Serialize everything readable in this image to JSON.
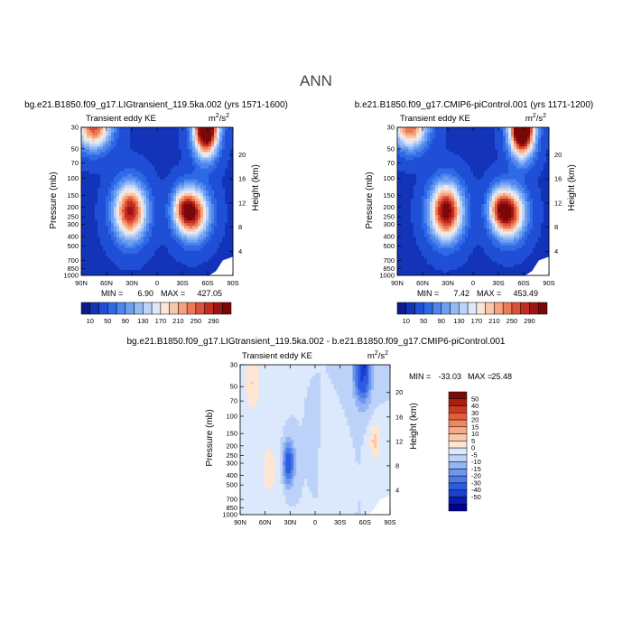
{
  "page": {
    "title": "ANN"
  },
  "chart_data": [
    {
      "type": "contour",
      "title": "bg.e21.B1850.f09_g17.LIGtransient_119.5ka.002 (yrs 1571-1600)",
      "left_label": "Transient eddy KE",
      "units": "m²/s²",
      "units_base": "m",
      "units_exp1": "2",
      "units_mid": "/s",
      "units_exp2": "2",
      "ylabel": "Pressure (mb)",
      "ylabel_right": "Height (km)",
      "x_ticks": [
        "90N",
        "60N",
        "30N",
        "0",
        "30S",
        "60S",
        "90S"
      ],
      "y_ticks": [
        "30",
        "50",
        "70",
        "100",
        "150",
        "200",
        "250",
        "300",
        "400",
        "500",
        "700",
        "850",
        "1000"
      ],
      "y_ticks_right": [
        "20",
        "16",
        "12",
        "8",
        "4"
      ],
      "min_label": "MIN =",
      "min_value": "6.90",
      "max_label": "MAX =",
      "max_value": "427.05",
      "min": 6.9,
      "max": 427.05,
      "colorbar_labels": [
        "10",
        "50",
        "90",
        "130",
        "170",
        "210",
        "250",
        "290"
      ],
      "features": [
        {
          "lat": 75,
          "p": 30,
          "value": 260,
          "spread_lat": 14,
          "spread_lp": 0.35
        },
        {
          "lat": -58,
          "p": 30,
          "value": 420,
          "spread_lat": 10,
          "spread_lp": 0.45
        },
        {
          "lat": 32,
          "p": 220,
          "value": 300,
          "spread_lat": 13,
          "spread_lp": 0.45
        },
        {
          "lat": -42,
          "p": 230,
          "value": 300,
          "spread_lat": 13,
          "spread_lp": 0.4
        },
        {
          "lat": -30,
          "p": 200,
          "value": 130,
          "spread_lat": 8,
          "spread_lp": 0.3
        }
      ]
    },
    {
      "type": "contour",
      "title": "b.e21.B1850.f09_g17.CMIP6-piControl.001 (yrs 1171-1200)",
      "left_label": "Transient eddy KE",
      "units": "m²/s²",
      "units_base": "m",
      "units_exp1": "2",
      "units_mid": "/s",
      "units_exp2": "2",
      "ylabel": "Pressure (mb)",
      "ylabel_right": "Height (km)",
      "x_ticks": [
        "90N",
        "60N",
        "30N",
        "0",
        "30S",
        "60S",
        "90S"
      ],
      "y_ticks": [
        "30",
        "50",
        "70",
        "100",
        "150",
        "200",
        "250",
        "300",
        "400",
        "500",
        "700",
        "850",
        "1000"
      ],
      "y_ticks_right": [
        "20",
        "16",
        "12",
        "8",
        "4"
      ],
      "min_label": "MIN =",
      "min_value": "7.42",
      "max_label": "MAX =",
      "max_value": "453.49",
      "min": 7.42,
      "max": 453.49,
      "colorbar_labels": [
        "10",
        "50",
        "90",
        "130",
        "170",
        "210",
        "250",
        "290"
      ],
      "features": [
        {
          "lat": 75,
          "p": 30,
          "value": 250,
          "spread_lat": 14,
          "spread_lp": 0.35
        },
        {
          "lat": -58,
          "p": 30,
          "value": 450,
          "spread_lat": 10,
          "spread_lp": 0.45
        },
        {
          "lat": 32,
          "p": 220,
          "value": 330,
          "spread_lat": 13,
          "spread_lp": 0.45
        },
        {
          "lat": -42,
          "p": 230,
          "value": 310,
          "spread_lat": 13,
          "spread_lp": 0.4
        },
        {
          "lat": -30,
          "p": 200,
          "value": 130,
          "spread_lat": 8,
          "spread_lp": 0.3
        }
      ]
    },
    {
      "type": "contour",
      "title": "bg.e21.B1850.f09_g17.LIGtransient_119.5ka.002 - b.e21.B1850.f09_g17.CMIP6-piControl.001",
      "left_label": "Transient eddy KE",
      "units": "m²/s²",
      "units_base": "m",
      "units_exp1": "2",
      "units_mid": "/s",
      "units_exp2": "2",
      "ylabel": "Pressure (mb)",
      "ylabel_right": "Height (km)",
      "x_ticks": [
        "90N",
        "60N",
        "30N",
        "0",
        "30S",
        "60S",
        "90S"
      ],
      "y_ticks": [
        "30",
        "50",
        "70",
        "100",
        "150",
        "200",
        "250",
        "300",
        "400",
        "500",
        "700",
        "850",
        "1000"
      ],
      "y_ticks_right": [
        "20",
        "16",
        "12",
        "8",
        "4"
      ],
      "min_label": "MIN =",
      "min_value": "-33.03",
      "max_label": "MAX =",
      "max_value": "25.48",
      "min": -33.03,
      "max": 25.48,
      "colorbar_labels": [
        "50",
        "40",
        "30",
        "20",
        "15",
        "10",
        "5",
        "0",
        "-5",
        "-10",
        "-15",
        "-20",
        "-30",
        "-40",
        "-50"
      ],
      "features": [
        {
          "lat": -57,
          "p": 35,
          "value": -33,
          "spread_lat": 7,
          "spread_lp": 0.5
        },
        {
          "lat": 32,
          "p": 300,
          "value": -28,
          "spread_lat": 5,
          "spread_lp": 0.35
        },
        {
          "lat": 75,
          "p": 45,
          "value": 10,
          "spread_lat": 7,
          "spread_lp": 0.5
        },
        {
          "lat": 55,
          "p": 350,
          "value": 6,
          "spread_lat": 12,
          "spread_lp": 0.8
        },
        {
          "lat": -72,
          "p": 180,
          "value": 12,
          "spread_lat": 5,
          "spread_lp": 0.3
        },
        {
          "lat": -20,
          "p": 200,
          "value": 5,
          "spread_lat": 8,
          "spread_lp": 0.3
        },
        {
          "lat": 2,
          "p": 180,
          "value": -4,
          "spread_lat": 4,
          "spread_lp": 0.3
        }
      ]
    }
  ],
  "colors": {
    "kept_scale": [
      "#0d1a8a",
      "#1333b8",
      "#1f4fd6",
      "#2f6ae6",
      "#4d86ee",
      "#6ea0f2",
      "#93baf5",
      "#bcd4f8",
      "#dde8fa",
      "#fbe5d6",
      "#f8c6a9",
      "#f4a27f",
      "#ec7a58",
      "#dc5238",
      "#c32d21",
      "#9e1412",
      "#7a0808"
    ],
    "diff_scale": [
      "#000090",
      "#0a1cae",
      "#1a3fcc",
      "#2c5de0",
      "#4a7ae9",
      "#6e96ef",
      "#95b4f3",
      "#bcd2f8",
      "#dce8fb",
      "#fde6d3",
      "#f9c9ab",
      "#f6aa86",
      "#f0875f",
      "#e35f3b",
      "#cc3a22",
      "#a61f12",
      "#7d0b07"
    ]
  }
}
